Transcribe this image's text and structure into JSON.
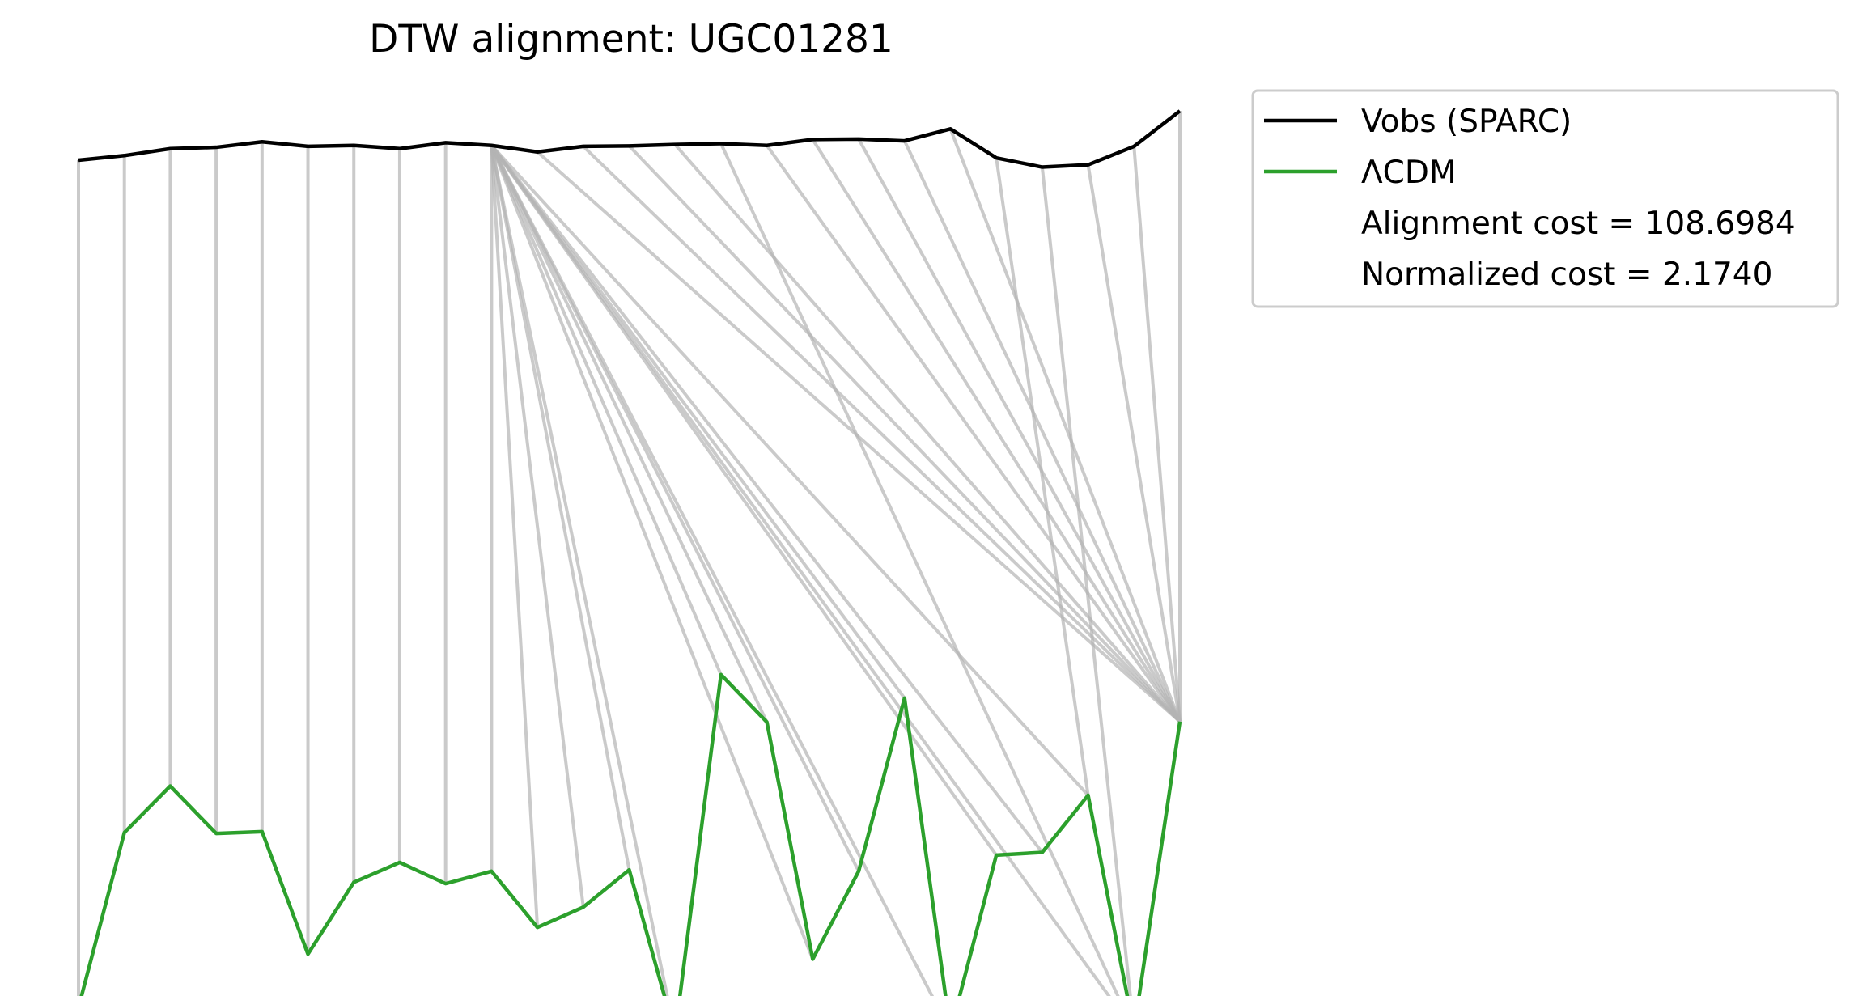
{
  "chart_data": {
    "type": "line",
    "title": "DTW alignment: UGC01281",
    "xlabel": "",
    "ylabel": "",
    "axes_visible": false,
    "grid": false,
    "legend_position": "upper-right, outside plot",
    "series": [
      {
        "name": "Vobs (SPARC)",
        "color": "#000000",
        "values": [
          0.9,
          1.0,
          1.15,
          1.18,
          1.3,
          1.2,
          1.22,
          1.15,
          1.28,
          1.22,
          1.08,
          1.2,
          1.21,
          1.24,
          1.26,
          1.22,
          1.35,
          1.36,
          1.32,
          1.58,
          0.95,
          0.75,
          0.8,
          1.2,
          1.97
        ]
      },
      {
        "name": "ΛCDM",
        "color": "#2ca02c",
        "values": [
          -17.29,
          -13.49,
          -12.48,
          -13.51,
          -13.47,
          -16.13,
          -14.57,
          -14.14,
          -14.6,
          -14.33,
          -15.55,
          -15.11,
          -14.3,
          -17.87,
          -10.06,
          -11.09,
          -16.24,
          -14.33,
          -10.57,
          -17.81,
          -13.98,
          -13.92,
          -12.68,
          -17.79,
          -11.08
        ]
      }
    ],
    "alignment_path": [
      [
        0,
        0
      ],
      [
        1,
        1
      ],
      [
        2,
        2
      ],
      [
        3,
        3
      ],
      [
        4,
        4
      ],
      [
        5,
        5
      ],
      [
        6,
        6
      ],
      [
        7,
        7
      ],
      [
        8,
        8
      ],
      [
        9,
        9
      ],
      [
        9,
        10
      ],
      [
        9,
        11
      ],
      [
        9,
        12
      ],
      [
        9,
        13
      ],
      [
        9,
        14
      ],
      [
        9,
        15
      ],
      [
        9,
        16
      ],
      [
        9,
        17
      ],
      [
        9,
        18
      ],
      [
        9,
        19
      ],
      [
        9,
        20
      ],
      [
        9,
        21
      ],
      [
        9,
        22
      ],
      [
        9,
        23
      ],
      [
        10,
        24
      ],
      [
        11,
        24
      ],
      [
        12,
        24
      ],
      [
        13,
        24
      ],
      [
        14,
        23
      ],
      [
        15,
        24
      ],
      [
        16,
        24
      ],
      [
        17,
        24
      ],
      [
        18,
        24
      ],
      [
        19,
        24
      ],
      [
        20,
        22
      ],
      [
        21,
        23
      ],
      [
        22,
        24
      ],
      [
        23,
        24
      ],
      [
        24,
        24
      ]
    ],
    "legend": {
      "entries": [
        "Vobs (SPARC)",
        "ΛCDM"
      ],
      "notes": [
        "Alignment cost = 108.6984",
        "Normalized cost = 2.1740"
      ]
    }
  }
}
